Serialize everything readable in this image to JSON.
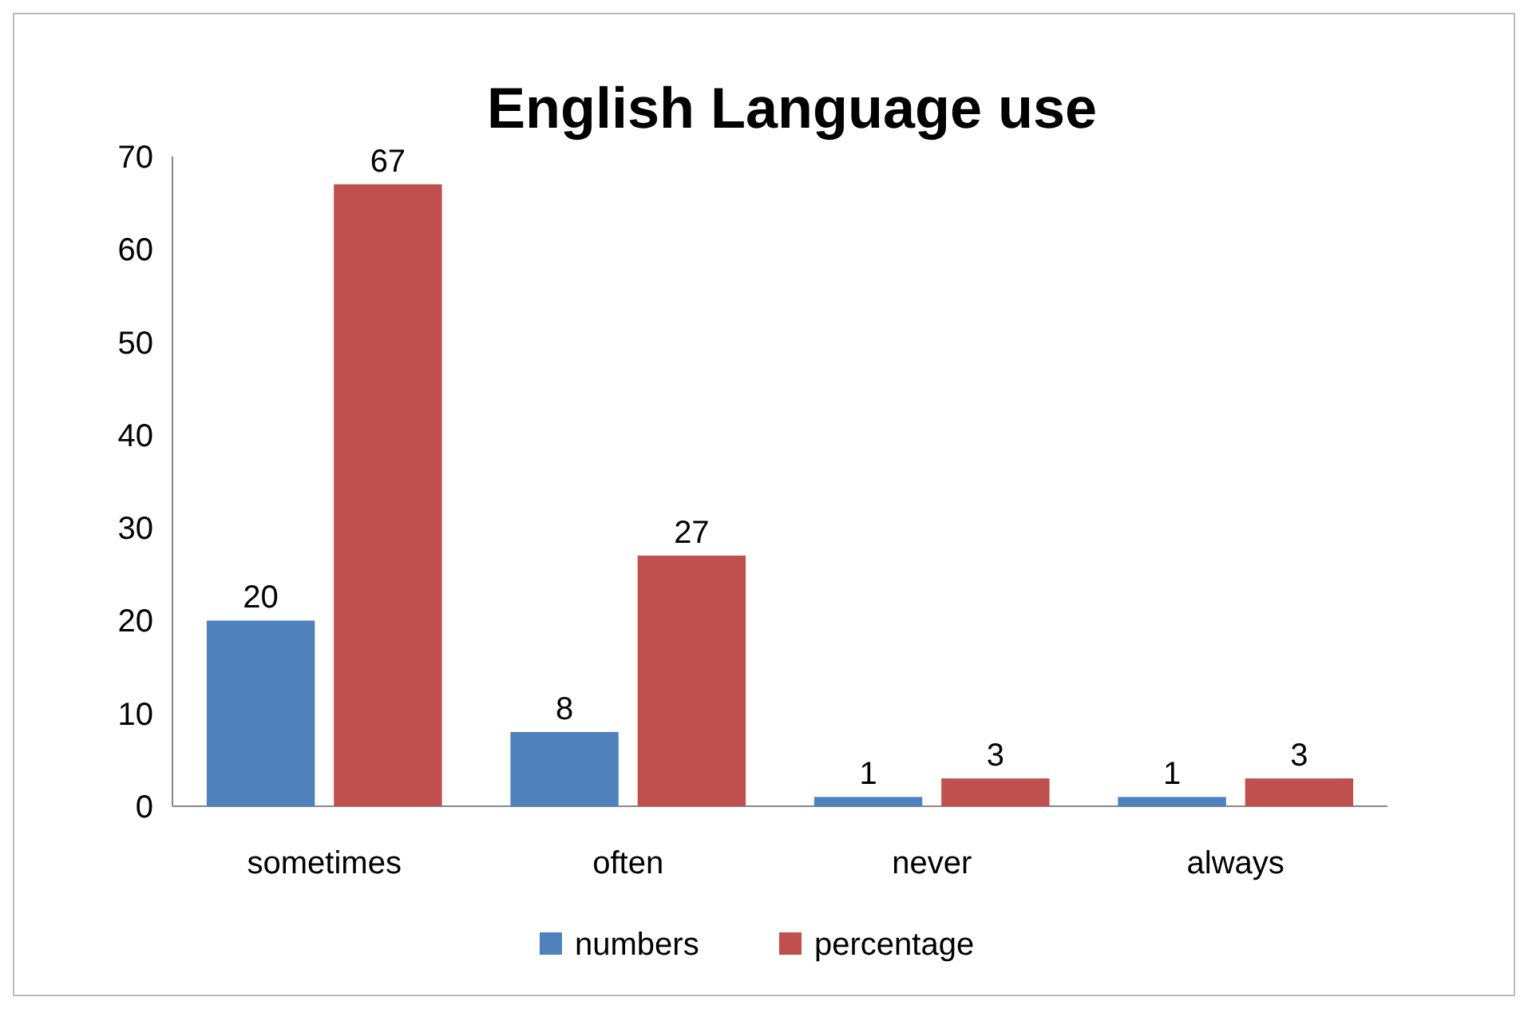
{
  "chart_data": {
    "type": "bar",
    "title": "English Language use",
    "categories": [
      "sometimes",
      "often",
      "never",
      "always"
    ],
    "series": [
      {
        "name": "numbers",
        "color": "#4f81bd",
        "values": [
          20,
          8,
          1,
          1
        ]
      },
      {
        "name": "percentage",
        "color": "#c0504d",
        "values": [
          67,
          27,
          3,
          3
        ]
      }
    ],
    "ylim": [
      0,
      70
    ],
    "yticks": [
      0,
      10,
      20,
      30,
      40,
      50,
      60,
      70
    ],
    "grid": false,
    "legend": "bottom",
    "data_labels": true
  }
}
